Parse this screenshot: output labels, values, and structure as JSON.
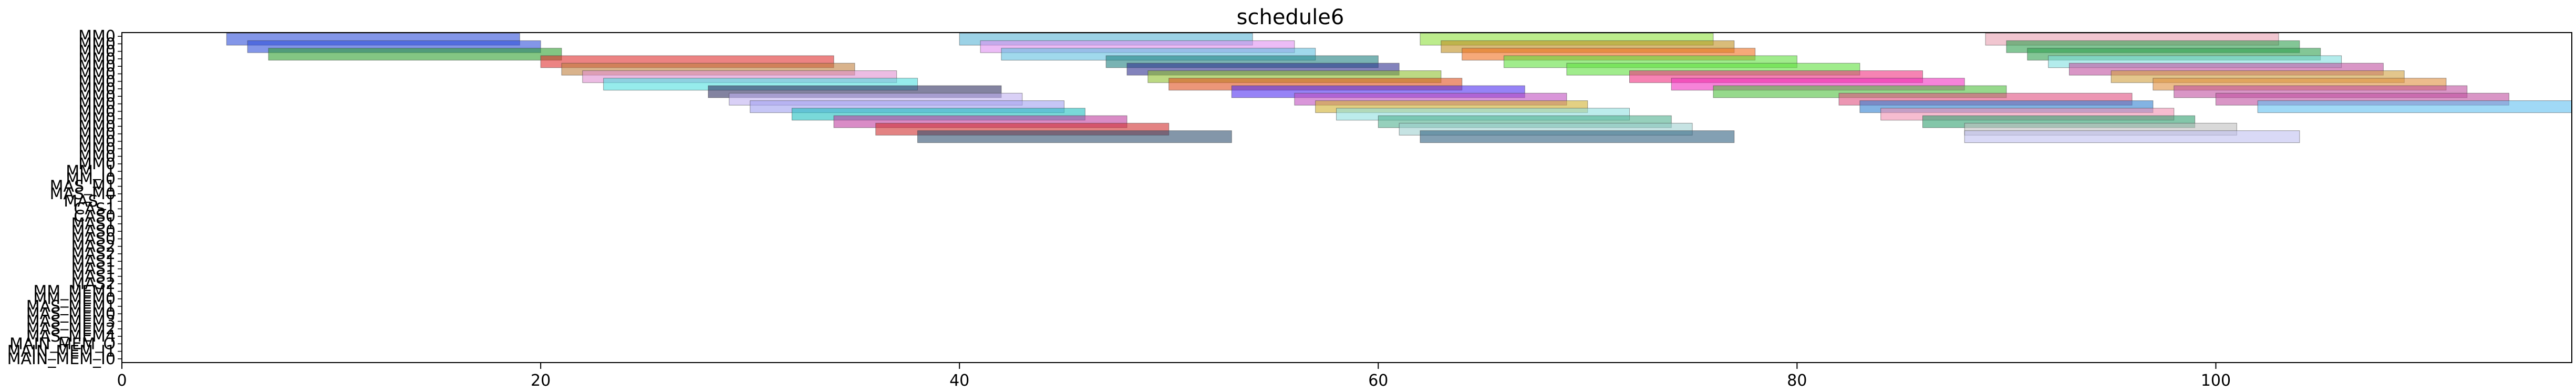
{
  "chart_data": {
    "type": "gantt",
    "title": "schedule6",
    "xlabel": "",
    "ylabel": "",
    "xlim": [
      0,
      117
    ],
    "xticks": [
      0,
      20,
      40,
      60,
      80,
      100
    ],
    "grid": false,
    "lanes": [
      "MM0",
      "MM0",
      "MM0",
      "MM0",
      "MM0",
      "MM0",
      "MM0",
      "MM0",
      "MM0",
      "MM0",
      "MM0",
      "MM0",
      "MM0",
      "MM0",
      "MM0",
      "MM0",
      "MM0",
      "MM0",
      "MM_I1",
      "MM_I0",
      "MAS_M1",
      "MAS_M0",
      "MAS_T",
      "CAS1",
      "CAS0",
      "MAS1",
      "MAS0",
      "MAS0",
      "MAS2",
      "MAS2",
      "MAS1",
      "MAS1",
      "MAS1",
      "MAS2",
      "MM_MEM1",
      "MM_MEM0",
      "MAS_MEM1",
      "MAS_MEM0",
      "MAS_MEM3",
      "MAS_MEM2",
      "MAS_MEM4",
      "MAIN_MEM_O",
      "MAIN_MEM_I1",
      "MAIN_MEM_I0"
    ],
    "bars": [
      {
        "lane": 0,
        "start": 5,
        "end": 19,
        "color": "#3050d8"
      },
      {
        "lane": 0,
        "start": 40,
        "end": 54,
        "color": "#5ab4d6"
      },
      {
        "lane": 0,
        "start": 62,
        "end": 76,
        "color": "#90e040"
      },
      {
        "lane": 0,
        "start": 89,
        "end": 103,
        "color": "#e8a0b0"
      },
      {
        "lane": 1,
        "start": 6,
        "end": 20,
        "color": "#3050d8"
      },
      {
        "lane": 1,
        "start": 41,
        "end": 56,
        "color": "#e090f0"
      },
      {
        "lane": 1,
        "start": 63,
        "end": 77,
        "color": "#c09020"
      },
      {
        "lane": 1,
        "start": 90,
        "end": 104,
        "color": "#30a050"
      },
      {
        "lane": 2,
        "start": 7,
        "end": 21,
        "color": "#30a030"
      },
      {
        "lane": 2,
        "start": 42,
        "end": 57,
        "color": "#60c0e0"
      },
      {
        "lane": 2,
        "start": 64,
        "end": 78,
        "color": "#f07020"
      },
      {
        "lane": 2,
        "start": 91,
        "end": 105,
        "color": "#30a050"
      },
      {
        "lane": 3,
        "start": 20,
        "end": 34,
        "color": "#e03030"
      },
      {
        "lane": 3,
        "start": 47,
        "end": 60,
        "color": "#208080"
      },
      {
        "lane": 3,
        "start": 66,
        "end": 80,
        "color": "#60e040"
      },
      {
        "lane": 3,
        "start": 92,
        "end": 106,
        "color": "#80e0e0"
      },
      {
        "lane": 4,
        "start": 21,
        "end": 35,
        "color": "#c08040"
      },
      {
        "lane": 4,
        "start": 48,
        "end": 61,
        "color": "#303090"
      },
      {
        "lane": 4,
        "start": 69,
        "end": 83,
        "color": "#60e040"
      },
      {
        "lane": 4,
        "start": 93,
        "end": 108,
        "color": "#c050a0"
      },
      {
        "lane": 5,
        "start": 22,
        "end": 37,
        "color": "#e090d0"
      },
      {
        "lane": 5,
        "start": 49,
        "end": 63,
        "color": "#90c030"
      },
      {
        "lane": 5,
        "start": 72,
        "end": 86,
        "color": "#f03080"
      },
      {
        "lane": 5,
        "start": 95,
        "end": 109,
        "color": "#d0a040"
      },
      {
        "lane": 6,
        "start": 23,
        "end": 38,
        "color": "#50e0e0"
      },
      {
        "lane": 6,
        "start": 50,
        "end": 64,
        "color": "#e05020"
      },
      {
        "lane": 6,
        "start": 74,
        "end": 88,
        "color": "#f030c0"
      },
      {
        "lane": 6,
        "start": 97,
        "end": 111,
        "color": "#e09040"
      },
      {
        "lane": 7,
        "start": 28,
        "end": 42,
        "color": "#303060"
      },
      {
        "lane": 7,
        "start": 53,
        "end": 67,
        "color": "#5030f0"
      },
      {
        "lane": 7,
        "start": 76,
        "end": 90,
        "color": "#50c040"
      },
      {
        "lane": 7,
        "start": 98,
        "end": 112,
        "color": "#c050a0"
      },
      {
        "lane": 8,
        "start": 29,
        "end": 43,
        "color": "#c0b0f0"
      },
      {
        "lane": 8,
        "start": 56,
        "end": 69,
        "color": "#c050c0"
      },
      {
        "lane": 8,
        "start": 82,
        "end": 96,
        "color": "#e05080"
      },
      {
        "lane": 8,
        "start": 100,
        "end": 114,
        "color": "#c050a0"
      },
      {
        "lane": 9,
        "start": 30,
        "end": 45,
        "color": "#a0a0f0"
      },
      {
        "lane": 9,
        "start": 57,
        "end": 70,
        "color": "#d0b030"
      },
      {
        "lane": 9,
        "start": 83,
        "end": 97,
        "color": "#3080d0"
      },
      {
        "lane": 9,
        "start": 102,
        "end": 117,
        "color": "#60c0f0"
      },
      {
        "lane": 10,
        "start": 32,
        "end": 46,
        "color": "#20c0c0"
      },
      {
        "lane": 10,
        "start": 58,
        "end": 72,
        "color": "#90e0e0"
      },
      {
        "lane": 10,
        "start": 84,
        "end": 98,
        "color": "#f090b0"
      },
      {
        "lane": 11,
        "start": 34,
        "end": 48,
        "color": "#c040a0"
      },
      {
        "lane": 11,
        "start": 60,
        "end": 74,
        "color": "#50b090"
      },
      {
        "lane": 11,
        "start": 86,
        "end": 99,
        "color": "#30a070"
      },
      {
        "lane": 12,
        "start": 36,
        "end": 50,
        "color": "#d03030"
      },
      {
        "lane": 12,
        "start": 61,
        "end": 75,
        "color": "#a0d0d0"
      },
      {
        "lane": 12,
        "start": 88,
        "end": 101,
        "color": "#c0c0c0"
      },
      {
        "lane": 13,
        "start": 38,
        "end": 53,
        "color": "#305070"
      },
      {
        "lane": 13,
        "start": 62,
        "end": 77,
        "color": "#306080"
      },
      {
        "lane": 13,
        "start": 88,
        "end": 104,
        "color": "#c0c0f0"
      }
    ]
  }
}
